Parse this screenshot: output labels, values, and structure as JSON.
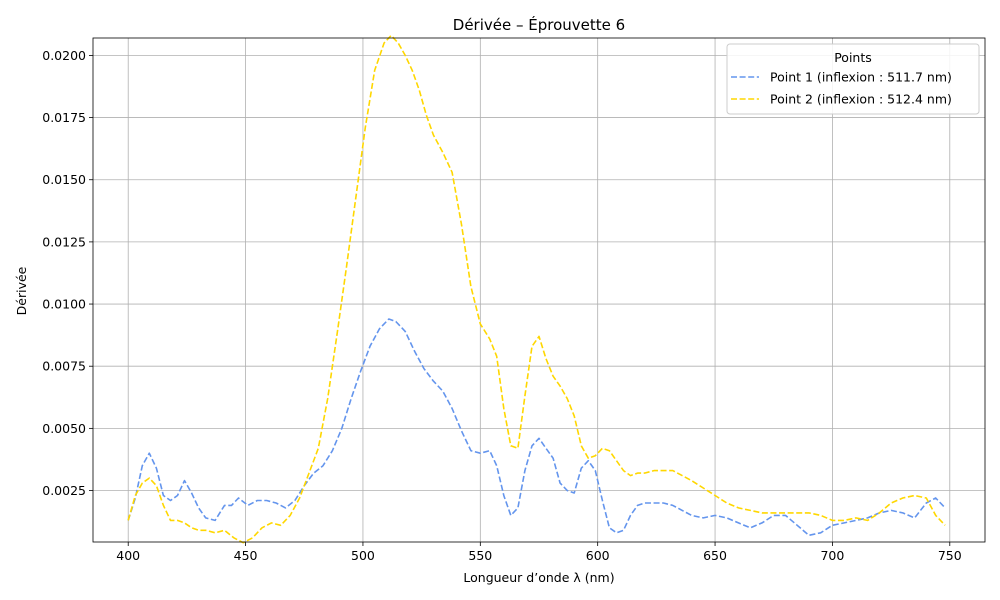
{
  "chart_data": {
    "type": "line",
    "title": "Dérivée – Éprouvette 6",
    "xlabel": "Longueur d’onde λ (nm)",
    "ylabel": "Dérivée",
    "xlim": [
      385,
      765
    ],
    "ylim": [
      0.00043,
      0.0207
    ],
    "xticks": [
      400,
      450,
      500,
      550,
      600,
      650,
      700,
      750
    ],
    "xtick_labels": [
      "400",
      "450",
      "500",
      "550",
      "600",
      "650",
      "700",
      "750"
    ],
    "yticks": [
      0.0025,
      0.005,
      0.0075,
      0.01,
      0.0125,
      0.015,
      0.0175,
      0.02
    ],
    "ytick_labels": [
      "0.0025",
      "0.0050",
      "0.0075",
      "0.0100",
      "0.0125",
      "0.0150",
      "0.0175",
      "0.0200"
    ],
    "grid": true,
    "legend": {
      "title": "Points",
      "position": "top-right"
    },
    "series": [
      {
        "name": "Point 1 (inflexion : 511.7 nm)",
        "color": "#6495ED",
        "style": "dashed",
        "x": [
          400,
          403,
          406,
          409,
          412,
          415,
          418,
          421,
          424,
          427,
          430,
          433,
          437,
          441,
          444,
          447,
          451,
          455,
          459,
          463,
          467,
          471,
          475,
          479,
          483,
          487,
          491,
          495,
          499,
          503,
          507,
          511,
          514,
          518,
          522,
          526,
          530,
          534,
          538,
          542,
          546,
          550,
          554,
          557,
          560,
          563,
          566,
          569,
          572,
          575,
          578,
          581,
          584,
          587,
          590,
          593,
          596,
          599,
          602,
          605,
          608,
          611,
          614,
          617,
          620,
          624,
          628,
          632,
          636,
          640,
          645,
          650,
          655,
          660,
          665,
          670,
          675,
          680,
          685,
          690,
          695,
          700,
          705,
          710,
          715,
          720,
          725,
          730,
          735,
          740,
          744,
          748
        ],
        "y": [
          0.0013,
          0.0022,
          0.0035,
          0.004,
          0.0034,
          0.0023,
          0.0021,
          0.0023,
          0.0029,
          0.0024,
          0.0018,
          0.0014,
          0.0013,
          0.0019,
          0.0019,
          0.0022,
          0.0019,
          0.0021,
          0.0021,
          0.002,
          0.0018,
          0.0021,
          0.0027,
          0.0032,
          0.0035,
          0.0041,
          0.005,
          0.0062,
          0.0073,
          0.0083,
          0.009,
          0.0094,
          0.0093,
          0.0089,
          0.0081,
          0.0074,
          0.0069,
          0.0065,
          0.0058,
          0.0049,
          0.0041,
          0.004,
          0.0041,
          0.0035,
          0.0023,
          0.0015,
          0.0018,
          0.0033,
          0.0043,
          0.0046,
          0.0042,
          0.0038,
          0.0028,
          0.0025,
          0.0024,
          0.0034,
          0.0037,
          0.0033,
          0.0021,
          0.001,
          0.0008,
          0.0009,
          0.0015,
          0.0019,
          0.002,
          0.002,
          0.002,
          0.0019,
          0.0017,
          0.0015,
          0.0014,
          0.0015,
          0.0014,
          0.0012,
          0.001,
          0.0012,
          0.0015,
          0.0015,
          0.0011,
          0.0007,
          0.0008,
          0.0011,
          0.0012,
          0.0013,
          0.0014,
          0.0016,
          0.0017,
          0.0016,
          0.0014,
          0.002,
          0.0022,
          0.0018
        ]
      },
      {
        "name": "Point 2 (inflexion : 512.4 nm)",
        "color": "#FFD700",
        "style": "dashed",
        "x": [
          400,
          403,
          406,
          409,
          412,
          415,
          418,
          421,
          424,
          427,
          430,
          433,
          437,
          441,
          445,
          449,
          453,
          457,
          461,
          465,
          469,
          473,
          477,
          481,
          485,
          489,
          493,
          497,
          501,
          505,
          509,
          512,
          515,
          518,
          521,
          524,
          527,
          530,
          534,
          538,
          542,
          546,
          550,
          554,
          557,
          560,
          563,
          566,
          569,
          572,
          575,
          578,
          581,
          584,
          587,
          590,
          593,
          596,
          599,
          602,
          605,
          608,
          611,
          614,
          617,
          620,
          624,
          628,
          632,
          636,
          640,
          645,
          650,
          655,
          660,
          665,
          670,
          675,
          680,
          685,
          690,
          695,
          700,
          705,
          710,
          715,
          720,
          725,
          730,
          735,
          740,
          744,
          748
        ],
        "y": [
          0.0013,
          0.0023,
          0.0028,
          0.003,
          0.0027,
          0.0019,
          0.0013,
          0.0013,
          0.0012,
          0.001,
          0.0009,
          0.0009,
          0.0008,
          0.0009,
          0.0006,
          0.0004,
          0.0006,
          0.001,
          0.0012,
          0.0011,
          0.0015,
          0.0022,
          0.0032,
          0.0042,
          0.0062,
          0.0088,
          0.0115,
          0.0143,
          0.0171,
          0.0194,
          0.0205,
          0.0208,
          0.0205,
          0.02,
          0.0194,
          0.0186,
          0.0176,
          0.0168,
          0.0161,
          0.0153,
          0.0132,
          0.0107,
          0.0092,
          0.0086,
          0.0079,
          0.0058,
          0.0043,
          0.0042,
          0.0063,
          0.0083,
          0.0087,
          0.0078,
          0.0071,
          0.0067,
          0.0062,
          0.0055,
          0.0043,
          0.0038,
          0.0039,
          0.0042,
          0.0041,
          0.0037,
          0.0033,
          0.0031,
          0.0032,
          0.0032,
          0.0033,
          0.0033,
          0.0033,
          0.0031,
          0.0029,
          0.0026,
          0.0023,
          0.002,
          0.0018,
          0.0017,
          0.0016,
          0.0016,
          0.0016,
          0.0016,
          0.0016,
          0.0015,
          0.0013,
          0.0013,
          0.0014,
          0.0013,
          0.0016,
          0.002,
          0.0022,
          0.0023,
          0.0022,
          0.0015,
          0.0011
        ]
      }
    ]
  }
}
